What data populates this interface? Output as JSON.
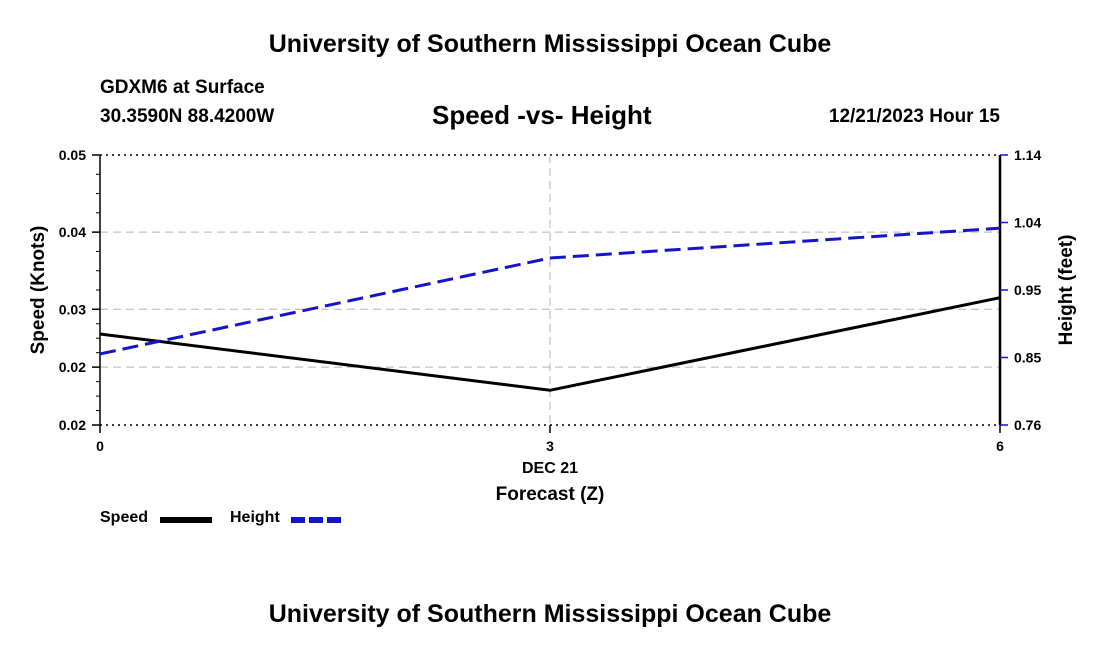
{
  "header": {
    "title": "University of Southern Mississippi Ocean Cube",
    "station": "GDXM6 at Surface",
    "coords": "30.3590N  88.4200W",
    "chart_title": "Speed -vs- Height",
    "date": "12/21/2023 Hour 15"
  },
  "footer": {
    "title": "University of Southern Mississippi Ocean Cube"
  },
  "legend": {
    "speed_label": "Speed",
    "height_label": "Height"
  },
  "colors": {
    "speed": "#000000",
    "height": "#1414c8",
    "grid": "#b4b4b4"
  },
  "chart_data": {
    "type": "line",
    "title": "Speed -vs- Height",
    "x": [
      0,
      3,
      6
    ],
    "x_tick_labels": [
      "0",
      "3",
      "6"
    ],
    "x_date_label": "DEC 21",
    "xlabel": "Forecast (Z)",
    "xlim": [
      0,
      6
    ],
    "ylabel_left": "Speed (Knots)",
    "ylabel_right": "Height (feet)",
    "ylim_left": [
      0.015,
      0.05
    ],
    "ylim_right": [
      0.76,
      1.14
    ],
    "y_left_ticks": [
      {
        "value": 0.05,
        "label": "0.05"
      },
      {
        "value": 0.04,
        "label": "0.04"
      },
      {
        "value": 0.03,
        "label": "0.03"
      },
      {
        "value": 0.0225,
        "label": "0.02"
      },
      {
        "value": 0.015,
        "label": "0.02"
      }
    ],
    "y_right_ticks": [
      {
        "value": 1.14,
        "label": "1.14"
      },
      {
        "value": 1.045,
        "label": "1.04"
      },
      {
        "value": 0.95,
        "label": "0.95"
      },
      {
        "value": 0.855,
        "label": "0.85"
      },
      {
        "value": 0.76,
        "label": "0.76"
      }
    ],
    "series": [
      {
        "name": "Speed",
        "axis": "left",
        "values": [
          0.0268,
          0.0195,
          0.0315
        ]
      },
      {
        "name": "Height",
        "axis": "right",
        "values": [
          0.86,
          0.995,
          1.037
        ]
      }
    ],
    "grid": true,
    "legend": "bottom-left"
  }
}
